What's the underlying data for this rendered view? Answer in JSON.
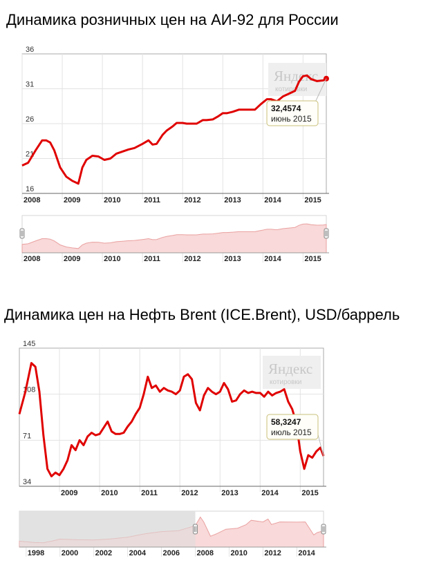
{
  "charts": [
    {
      "title": "Динамика розничных цен на АИ-92 для России",
      "logo": {
        "brand": "Яндекс",
        "sub": "котировки"
      },
      "tooltip": {
        "value": "32,4574",
        "date": "июнь 2015"
      },
      "colors": {
        "line": "#e00000",
        "fill": "#f9d9d9",
        "grid": "#e2e2e2",
        "border": "#aaaaaa"
      }
    },
    {
      "title": "Динамика цен на Нефть Brent (ICE.Brent), USD/баррель",
      "logo": {
        "brand": "Яндекс",
        "sub": "котировки"
      },
      "tooltip": {
        "value": "58,3247",
        "date": "июль 2015"
      },
      "colors": {
        "line": "#e00000",
        "fill": "#f9d9d9",
        "grid": "#e2e2e2",
        "border": "#aaaaaa"
      }
    }
  ],
  "chart_data": [
    {
      "type": "line",
      "title": "Динамика розничных цен на АИ-92 для России",
      "xlabel": "",
      "ylabel": "",
      "x_range": [
        2008.0,
        2015.58
      ],
      "ylim": [
        16,
        36
      ],
      "yticks": [
        16,
        21,
        26,
        31,
        36
      ],
      "xticks": [
        2008,
        2009,
        2010,
        2011,
        2012,
        2013,
        2014,
        2015
      ],
      "grid": true,
      "legend": "none",
      "series": [
        {
          "x": [
            2008.0,
            2008.15,
            2008.35,
            2008.5,
            2008.6,
            2008.7,
            2008.8,
            2008.95,
            2009.1,
            2009.25,
            2009.4,
            2009.5,
            2009.6,
            2009.75,
            2009.9,
            2010.05,
            2010.2,
            2010.35,
            2010.5,
            2010.65,
            2010.8,
            2011.0,
            2011.15,
            2011.25,
            2011.35,
            2011.5,
            2011.6,
            2011.75,
            2011.85,
            2012.0,
            2012.1,
            2012.2,
            2012.35,
            2012.5,
            2012.6,
            2012.75,
            2012.9,
            2013.0,
            2013.1,
            2013.25,
            2013.4,
            2013.5,
            2013.65,
            2013.8,
            2013.95,
            2014.1,
            2014.2,
            2014.35,
            2014.5,
            2014.65,
            2014.8,
            2014.9,
            2015.0,
            2015.1,
            2015.2,
            2015.35,
            2015.5,
            2015.58
          ],
          "values": [
            20.0,
            20.4,
            22.3,
            23.6,
            23.6,
            23.3,
            22.2,
            19.7,
            18.4,
            17.8,
            17.4,
            19.7,
            20.8,
            21.4,
            21.3,
            20.8,
            21.0,
            21.7,
            22.0,
            22.3,
            22.5,
            23.1,
            23.6,
            23.0,
            23.1,
            24.4,
            25.0,
            25.6,
            26.1,
            26.1,
            26.0,
            26.0,
            26.0,
            26.5,
            26.5,
            26.6,
            27.1,
            27.5,
            27.5,
            27.7,
            28.0,
            28.0,
            28.0,
            28.0,
            28.8,
            29.5,
            29.5,
            29.2,
            29.9,
            30.3,
            30.7,
            32.0,
            32.8,
            32.9,
            32.4,
            32.1,
            32.2,
            32.46
          ]
        }
      ],
      "annotations": [
        {
          "x": 2015.58,
          "y": 32.4574,
          "text": "32,4574 июнь 2015"
        }
      ]
    },
    {
      "type": "line",
      "title": "Динамика цен на Нефть Brent (ICE.Brent), USD/баррель",
      "xlabel": "",
      "ylabel": "",
      "x_range": [
        2008.0,
        2015.58
      ],
      "ylim": [
        34,
        145
      ],
      "yticks": [
        34,
        71,
        108,
        145
      ],
      "xticks": [
        2009,
        2010,
        2011,
        2012,
        2013,
        2014,
        2015
      ],
      "grid": true,
      "legend": "none",
      "series": [
        {
          "x": [
            2008.0,
            2008.15,
            2008.3,
            2008.4,
            2008.5,
            2008.6,
            2008.7,
            2008.8,
            2008.9,
            2009.0,
            2009.1,
            2009.2,
            2009.3,
            2009.4,
            2009.5,
            2009.6,
            2009.7,
            2009.8,
            2009.9,
            2010.0,
            2010.1,
            2010.2,
            2010.3,
            2010.4,
            2010.5,
            2010.6,
            2010.7,
            2010.8,
            2010.9,
            2011.0,
            2011.1,
            2011.2,
            2011.3,
            2011.4,
            2011.5,
            2011.6,
            2011.7,
            2011.8,
            2011.9,
            2012.0,
            2012.1,
            2012.2,
            2012.3,
            2012.4,
            2012.5,
            2012.6,
            2012.7,
            2012.8,
            2012.9,
            2013.0,
            2013.1,
            2013.2,
            2013.3,
            2013.4,
            2013.5,
            2013.6,
            2013.7,
            2013.8,
            2013.9,
            2014.0,
            2014.1,
            2014.2,
            2014.3,
            2014.4,
            2014.5,
            2014.6,
            2014.7,
            2014.8,
            2014.9,
            2015.0,
            2015.1,
            2015.2,
            2015.3,
            2015.4,
            2015.5,
            2015.58
          ],
          "values": [
            92,
            110,
            133,
            130,
            110,
            75,
            48,
            42,
            45,
            43,
            48,
            55,
            67,
            63,
            71,
            67,
            74,
            77,
            75,
            76,
            81,
            86,
            78,
            76,
            76,
            77,
            82,
            86,
            92,
            97,
            108,
            122,
            113,
            115,
            110,
            113,
            111,
            110,
            108,
            111,
            122,
            124,
            120,
            101,
            95,
            107,
            113,
            110,
            108,
            110,
            117,
            112,
            102,
            103,
            108,
            111,
            109,
            110,
            109,
            109,
            106,
            110,
            107,
            109,
            110,
            112,
            102,
            96,
            85,
            62,
            48,
            59,
            57,
            62,
            65,
            58.3
          ]
        }
      ],
      "annotations": [
        {
          "x": 2015.58,
          "y": 58.3247,
          "text": "58,3247 июль 2015"
        }
      ]
    }
  ],
  "navigators": [
    {
      "xticks": [
        2008,
        2009,
        2010,
        2011,
        2012,
        2013,
        2014,
        2015
      ],
      "x_range": [
        2008.0,
        2015.58
      ],
      "selection": [
        2008.0,
        2015.58
      ]
    },
    {
      "xticks": [
        1998,
        2000,
        2002,
        2004,
        2006,
        2008,
        2010,
        2012,
        2014
      ],
      "x_range": [
        1997.6,
        2015.58
      ],
      "selection": [
        2008.0,
        2015.58
      ],
      "series": {
        "x": [
          1997.6,
          1998.5,
          1999.0,
          1999.5,
          2000.0,
          2001.0,
          2002.0,
          2003.0,
          2004.0,
          2005.0,
          2006.0,
          2007.0,
          2007.5,
          2008.0,
          2008.3,
          2008.5,
          2008.9,
          2009.3,
          2009.8,
          2010.5,
          2011.0,
          2011.3,
          2012.0,
          2012.3,
          2012.5,
          2013.0,
          2014.0,
          2014.5,
          2015.0,
          2015.2,
          2015.4,
          2015.58
        ],
        "values": [
          18,
          12,
          11,
          18,
          28,
          25,
          24,
          29,
          37,
          53,
          64,
          68,
          80,
          92,
          133,
          110,
          42,
          55,
          75,
          80,
          97,
          118,
          110,
          124,
          98,
          110,
          109,
          110,
          48,
          59,
          64,
          58
        ]
      }
    }
  ]
}
